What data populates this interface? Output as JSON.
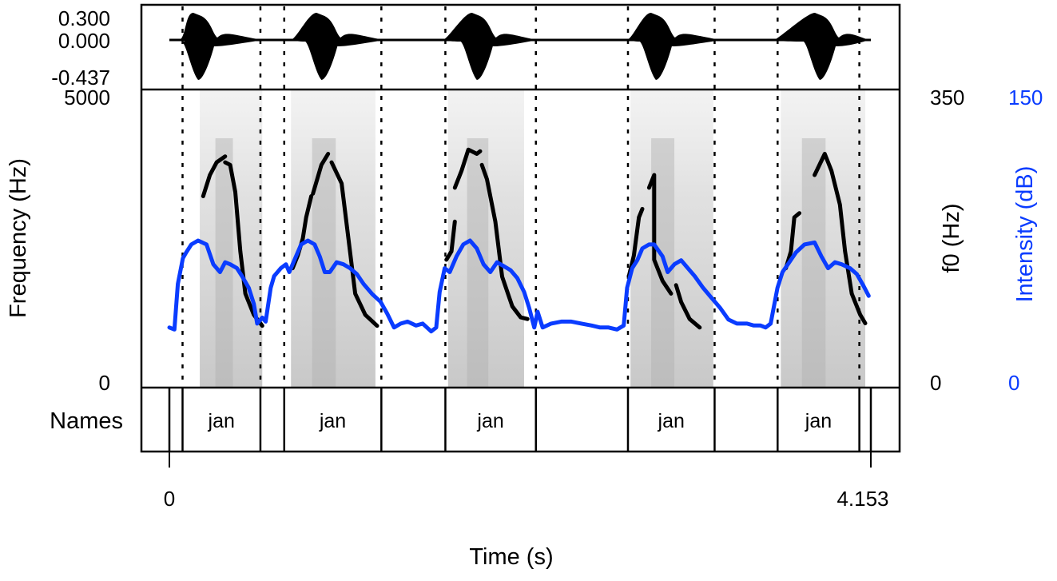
{
  "chart_data": {
    "type": "line",
    "title": "",
    "xlabel": "Time (s)",
    "x_range": [
      0,
      4.153
    ],
    "x_ticks": [
      "0",
      "4.153"
    ],
    "panels": {
      "waveform": {
        "y_ticks": [
          "0.300",
          "0.000",
          "-0.437"
        ],
        "ylim": [
          -0.437,
          0.3
        ],
        "bursts": [
          {
            "start": 0.06,
            "peak": 0.17,
            "end": 0.55
          },
          {
            "start": 0.72,
            "peak": 0.9,
            "end": 1.27
          },
          {
            "start": 1.62,
            "peak": 1.82,
            "end": 2.18
          },
          {
            "start": 2.71,
            "peak": 2.88,
            "end": 3.27
          },
          {
            "start": 3.58,
            "peak": 3.85,
            "end": 4.14
          }
        ]
      },
      "spectrogram": {
        "ylabel_left": "Frequency (Hz)",
        "ylim_left": [
          0,
          5000
        ],
        "y_ticks_left": [
          "5000",
          "0"
        ],
        "ylabel_right_f0": "f0 (Hz)",
        "ylim_right_f0": [
          0,
          350
        ],
        "y_ticks_right_f0": [
          "350",
          "0"
        ],
        "ylabel_right_intensity": "Intensity (dB)",
        "ylim_right_intensity": [
          0,
          150
        ],
        "y_ticks_right_intensity": [
          "150",
          "0"
        ],
        "series": [
          {
            "name": "f0",
            "color": "#000000",
            "unit": "Hz",
            "segments": [
              [
                [
                  0.2,
                  225
                ],
                [
                  0.24,
                  250
                ],
                [
                  0.28,
                  265
                ],
                [
                  0.33,
                  272
                ]
              ],
              [
                [
                  0.33,
                  265
                ],
                [
                  0.36,
                  262
                ],
                [
                  0.39,
                  230
                ],
                [
                  0.42,
                  160
                ],
                [
                  0.45,
                  110
                ],
                [
                  0.5,
                  85
                ],
                [
                  0.55,
                  72
                ]
              ],
              [
                [
                  0.73,
                  140
                ],
                [
                  0.76,
                  155
                ],
                [
                  0.79,
                  175
                ],
                [
                  0.81,
                  200
                ],
                [
                  0.84,
                  225
                ]
              ],
              [
                [
                  0.85,
                  228
                ],
                [
                  0.9,
                  262
                ],
                [
                  0.94,
                  275
                ]
              ],
              [
                [
                  0.96,
                  265
                ],
                [
                  1.02,
                  240
                ],
                [
                  1.06,
                  175
                ],
                [
                  1.1,
                  110
                ],
                [
                  1.16,
                  85
                ],
                [
                  1.23,
                  72
                ]
              ],
              [
                [
                  1.64,
                  150
                ],
                [
                  1.67,
                  160
                ],
                [
                  1.69,
                  195
                ]
              ],
              [
                [
                  1.69,
                  235
                ],
                [
                  1.73,
                  255
                ],
                [
                  1.77,
                  280
                ],
                [
                  1.82,
                  275
                ],
                [
                  1.84,
                  278
                ]
              ],
              [
                [
                  1.85,
                  262
                ],
                [
                  1.88,
                  245
                ],
                [
                  1.93,
                  195
                ],
                [
                  1.97,
                  130
                ],
                [
                  2.03,
                  95
                ],
                [
                  2.08,
                  82
                ],
                [
                  2.12,
                  80
                ]
              ],
              [
                [
                  2.72,
                  130
                ],
                [
                  2.75,
                  155
                ],
                [
                  2.78,
                  200
                ],
                [
                  2.8,
                  210
                ]
              ],
              [
                [
                  2.84,
                  235
                ],
                [
                  2.87,
                  250
                ],
                [
                  2.87,
                  150
                ],
                [
                  2.92,
                  125
                ],
                [
                  2.97,
                  110
                ]
              ],
              [
                [
                  3.0,
                  120
                ],
                [
                  3.03,
                  100
                ],
                [
                  3.08,
                  80
                ],
                [
                  3.14,
                  70
                ]
              ],
              [
                [
                  3.65,
                  140
                ],
                [
                  3.68,
                  160
                ],
                [
                  3.7,
                  200
                ],
                [
                  3.73,
                  205
                ]
              ],
              [
                [
                  3.82,
                  250
                ],
                [
                  3.88,
                  275
                ],
                [
                  3.92,
                  255
                ],
                [
                  3.97,
                  215
                ],
                [
                  4.0,
                  160
                ],
                [
                  4.04,
                  110
                ],
                [
                  4.09,
                  85
                ],
                [
                  4.12,
                  75
                ]
              ]
            ]
          },
          {
            "name": "Intensity",
            "color": "#0a3cff",
            "unit": "dB",
            "points": [
              [
                0.0,
                30
              ],
              [
                0.03,
                29
              ],
              [
                0.05,
                52
              ],
              [
                0.08,
                65
              ],
              [
                0.1,
                68
              ],
              [
                0.13,
                72
              ],
              [
                0.17,
                74
              ],
              [
                0.22,
                72
              ],
              [
                0.26,
                62
              ],
              [
                0.3,
                58
              ],
              [
                0.33,
                63
              ],
              [
                0.36,
                62
              ],
              [
                0.4,
                60
              ],
              [
                0.43,
                56
              ],
              [
                0.47,
                50
              ],
              [
                0.5,
                42
              ],
              [
                0.52,
                32
              ],
              [
                0.55,
                35
              ],
              [
                0.57,
                33
              ],
              [
                0.6,
                50
              ],
              [
                0.62,
                56
              ],
              [
                0.66,
                60
              ],
              [
                0.69,
                62
              ],
              [
                0.71,
                58
              ],
              [
                0.74,
                64
              ],
              [
                0.78,
                72
              ],
              [
                0.82,
                74
              ],
              [
                0.86,
                72
              ],
              [
                0.89,
                66
              ],
              [
                0.92,
                58
              ],
              [
                0.95,
                58
              ],
              [
                0.99,
                63
              ],
              [
                1.03,
                62
              ],
              [
                1.07,
                60
              ],
              [
                1.11,
                57
              ],
              [
                1.15,
                52
              ],
              [
                1.2,
                47
              ],
              [
                1.25,
                43
              ],
              [
                1.29,
                37
              ],
              [
                1.33,
                30
              ],
              [
                1.37,
                32
              ],
              [
                1.41,
                33
              ],
              [
                1.46,
                31
              ],
              [
                1.5,
                32
              ],
              [
                1.55,
                28
              ],
              [
                1.58,
                30
              ],
              [
                1.6,
                48
              ],
              [
                1.63,
                60
              ],
              [
                1.66,
                58
              ],
              [
                1.7,
                66
              ],
              [
                1.74,
                72
              ],
              [
                1.78,
                74
              ],
              [
                1.82,
                70
              ],
              [
                1.86,
                62
              ],
              [
                1.9,
                58
              ],
              [
                1.94,
                63
              ],
              [
                1.98,
                61
              ],
              [
                2.02,
                59
              ],
              [
                2.06,
                55
              ],
              [
                2.1,
                48
              ],
              [
                2.13,
                40
              ],
              [
                2.16,
                30
              ],
              [
                2.18,
                38
              ],
              [
                2.21,
                30
              ],
              [
                2.26,
                32
              ],
              [
                2.32,
                33
              ],
              [
                2.38,
                33
              ],
              [
                2.44,
                32
              ],
              [
                2.5,
                31
              ],
              [
                2.55,
                30
              ],
              [
                2.6,
                30
              ],
              [
                2.65,
                29
              ],
              [
                2.69,
                31
              ],
              [
                2.71,
                50
              ],
              [
                2.74,
                60
              ],
              [
                2.77,
                64
              ],
              [
                2.8,
                70
              ],
              [
                2.84,
                72
              ],
              [
                2.87,
                72
              ],
              [
                2.92,
                66
              ],
              [
                2.95,
                58
              ],
              [
                2.99,
                62
              ],
              [
                3.03,
                64
              ],
              [
                3.07,
                60
              ],
              [
                3.11,
                56
              ],
              [
                3.16,
                50
              ],
              [
                3.21,
                45
              ],
              [
                3.26,
                40
              ],
              [
                3.31,
                34
              ],
              [
                3.36,
                32
              ],
              [
                3.42,
                32
              ],
              [
                3.46,
                31
              ],
              [
                3.5,
                31
              ],
              [
                3.53,
                30
              ],
              [
                3.56,
                32
              ],
              [
                3.6,
                50
              ],
              [
                3.63,
                58
              ],
              [
                3.67,
                63
              ],
              [
                3.71,
                68
              ],
              [
                3.76,
                72
              ],
              [
                3.82,
                73
              ],
              [
                3.86,
                66
              ],
              [
                3.9,
                60
              ],
              [
                3.94,
                63
              ],
              [
                3.98,
                62
              ],
              [
                4.03,
                60
              ],
              [
                4.07,
                57
              ],
              [
                4.11,
                51
              ],
              [
                4.14,
                46
              ]
            ]
          }
        ],
        "voiced_bands": [
          {
            "start": 0.18,
            "end": 0.55
          },
          {
            "start": 0.72,
            "end": 1.22
          },
          {
            "start": 1.65,
            "end": 2.1
          },
          {
            "start": 2.73,
            "end": 3.22
          },
          {
            "start": 3.62,
            "end": 4.12
          }
        ]
      },
      "tier": {
        "name": "Names",
        "boundaries": [
          0.0,
          0.078,
          0.539,
          0.68,
          1.255,
          1.634,
          2.17,
          2.715,
          3.228,
          3.601,
          4.085,
          4.153
        ],
        "intervals": [
          {
            "start": 0.078,
            "end": 0.539,
            "label": "jan"
          },
          {
            "start": 0.68,
            "end": 1.255,
            "label": "jan"
          },
          {
            "start": 1.634,
            "end": 2.17,
            "label": "jan"
          },
          {
            "start": 2.715,
            "end": 3.228,
            "label": "jan"
          },
          {
            "start": 3.601,
            "end": 4.085,
            "label": "jan"
          }
        ]
      }
    },
    "dashed_boundaries": [
      0.078,
      0.539,
      0.68,
      1.255,
      1.634,
      2.17,
      2.715,
      3.228,
      3.601,
      4.085
    ],
    "grid": false,
    "legend": null
  },
  "labels": {
    "wave_tick_top": "0.300",
    "wave_tick_mid": "0.000",
    "wave_tick_bot": "-0.437",
    "freq_top": "5000",
    "freq_bot": "0",
    "freq_axis": "Frequency (Hz)",
    "f0_top": "350",
    "f0_bot": "0",
    "f0_axis": "f0 (Hz)",
    "int_top": "150",
    "int_bot": "0",
    "int_axis": "Intensity (dB)",
    "tier_name": "Names",
    "x_tick_start": "0",
    "x_tick_end": "4.153",
    "x_axis": "Time (s)",
    "interval_labels": [
      "jan",
      "jan",
      "jan",
      "jan",
      "jan"
    ]
  },
  "colors": {
    "f0": "#000000",
    "intensity": "#0a3cff",
    "spectrogram": "#b8b8b8",
    "frame": "#000000"
  }
}
